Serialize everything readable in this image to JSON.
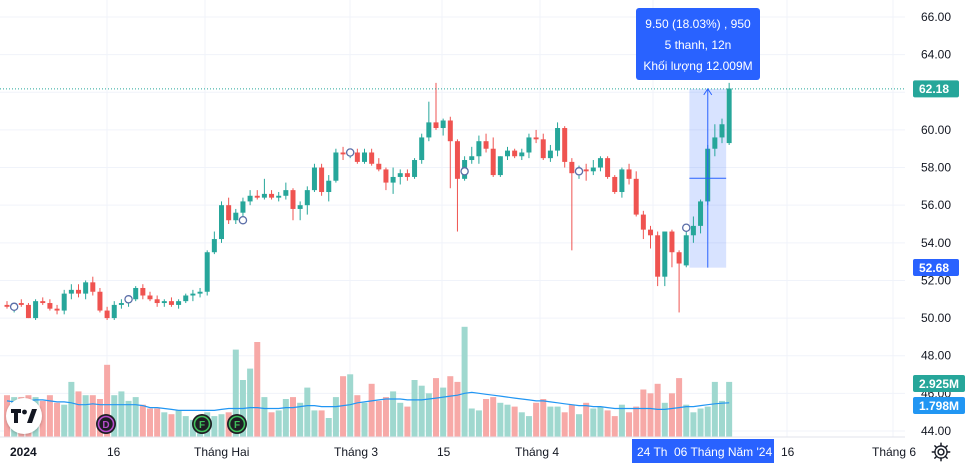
{
  "chart_data": {
    "type": "candlestick",
    "price_axis": {
      "ticks": [
        "66.00",
        "64.00",
        "62.00",
        "60.00",
        "58.00",
        "56.00",
        "54.00",
        "52.00",
        "50.00",
        "48.00",
        "46.00",
        "44.00"
      ],
      "ylim": [
        43.5,
        66.8
      ]
    },
    "time_axis": {
      "labels": [
        "2024",
        "16",
        "Tháng Hai",
        "Tháng 3",
        "15",
        "Tháng 4",
        "24 Th",
        "06 Tháng Năm '24",
        "16",
        "Tháng 6"
      ]
    },
    "last_price": "62.18",
    "range_low_label": "52.68",
    "volume_label": "2.925M",
    "volume_ma_label": "1.798M",
    "measure_tooltip": {
      "line1": "9.50 (18.03%) , 950",
      "line2": "5 thanh, 12n",
      "line3": "Khối lượng 12.009M"
    },
    "event_markers": [
      "D",
      "F",
      "F"
    ],
    "colors": {
      "up": "#26a69a",
      "down": "#ef5350",
      "up_volume": "#9fd8cf",
      "down_volume": "#f7a9a7",
      "volume_ma": "#2196f3",
      "measure": "#2962ff",
      "last_price": "#26a69a"
    },
    "candles": [
      [
        50.7,
        50.9,
        50.5,
        50.6
      ],
      [
        50.6,
        50.8,
        50.3,
        50.8
      ],
      [
        50.8,
        51.0,
        50.6,
        50.7
      ],
      [
        50.7,
        50.8,
        50.0,
        50.0
      ],
      [
        50.0,
        51.0,
        49.9,
        50.9
      ],
      [
        50.9,
        51.1,
        50.7,
        50.8
      ],
      [
        50.8,
        51.0,
        50.4,
        50.5
      ],
      [
        50.5,
        50.7,
        50.2,
        50.4
      ],
      [
        50.4,
        51.5,
        50.2,
        51.3
      ],
      [
        51.3,
        51.8,
        51.0,
        51.5
      ],
      [
        51.5,
        51.8,
        51.1,
        51.3
      ],
      [
        51.3,
        52.0,
        51.0,
        51.9
      ],
      [
        51.9,
        52.2,
        51.2,
        51.4
      ],
      [
        51.4,
        51.6,
        50.3,
        50.4
      ],
      [
        50.4,
        50.6,
        49.9,
        50.0
      ],
      [
        50.0,
        50.9,
        49.9,
        50.7
      ],
      [
        50.7,
        51.0,
        50.5,
        50.8
      ],
      [
        50.8,
        51.2,
        50.6,
        51.0
      ],
      [
        51.0,
        51.7,
        50.9,
        51.6
      ],
      [
        51.6,
        51.8,
        51.0,
        51.2
      ],
      [
        51.2,
        51.4,
        50.9,
        51.0
      ],
      [
        51.0,
        51.2,
        50.6,
        50.8
      ],
      [
        50.8,
        51.0,
        50.6,
        50.9
      ],
      [
        50.9,
        51.1,
        50.6,
        50.7
      ],
      [
        50.7,
        51.0,
        50.5,
        50.9
      ],
      [
        50.9,
        51.3,
        50.8,
        51.2
      ],
      [
        51.2,
        51.5,
        50.9,
        51.3
      ],
      [
        51.3,
        51.6,
        51.1,
        51.4
      ],
      [
        51.4,
        53.6,
        51.2,
        53.5
      ],
      [
        53.5,
        54.6,
        53.4,
        54.2
      ],
      [
        54.2,
        56.2,
        54.0,
        56.0
      ],
      [
        56.0,
        56.4,
        55.0,
        55.2
      ],
      [
        55.2,
        55.8,
        55.0,
        55.6
      ],
      [
        55.6,
        56.4,
        55.4,
        56.2
      ],
      [
        56.2,
        56.8,
        56.0,
        56.5
      ],
      [
        56.5,
        56.8,
        56.3,
        56.4
      ],
      [
        56.4,
        57.4,
        56.3,
        56.6
      ],
      [
        56.6,
        56.8,
        56.3,
        56.4
      ],
      [
        56.4,
        56.7,
        56.2,
        56.5
      ],
      [
        56.5,
        57.2,
        56.3,
        56.8
      ],
      [
        56.8,
        56.9,
        55.2,
        55.8
      ],
      [
        55.8,
        56.2,
        55.2,
        56.0
      ],
      [
        56.0,
        57.0,
        55.5,
        56.8
      ],
      [
        56.8,
        58.2,
        56.7,
        58.0
      ],
      [
        58.0,
        58.2,
        56.5,
        56.7
      ],
      [
        56.7,
        57.6,
        56.2,
        57.3
      ],
      [
        57.3,
        59.0,
        57.2,
        58.8
      ],
      [
        58.8,
        59.1,
        58.4,
        58.7
      ],
      [
        58.7,
        58.9,
        58.5,
        58.8
      ],
      [
        58.8,
        59.0,
        58.2,
        58.3
      ],
      [
        58.3,
        59.0,
        58.2,
        58.8
      ],
      [
        58.8,
        59.0,
        58.1,
        58.2
      ],
      [
        58.2,
        58.5,
        57.8,
        57.9
      ],
      [
        57.9,
        58.0,
        56.8,
        57.2
      ],
      [
        57.2,
        58.0,
        56.6,
        57.5
      ],
      [
        57.5,
        57.9,
        57.1,
        57.7
      ],
      [
        57.7,
        57.9,
        57.3,
        57.5
      ],
      [
        57.5,
        58.5,
        57.4,
        58.4
      ],
      [
        58.4,
        59.8,
        58.2,
        59.6
      ],
      [
        59.6,
        61.5,
        59.4,
        60.4
      ],
      [
        60.4,
        62.5,
        60.0,
        60.1
      ],
      [
        60.1,
        60.6,
        59.7,
        60.5
      ],
      [
        60.5,
        60.7,
        56.9,
        59.4
      ],
      [
        59.4,
        59.5,
        54.6,
        57.4
      ],
      [
        57.4,
        58.6,
        57.3,
        58.4
      ],
      [
        58.4,
        59.1,
        58.2,
        58.6
      ],
      [
        58.6,
        59.7,
        58.2,
        59.4
      ],
      [
        59.4,
        59.8,
        58.8,
        59.0
      ],
      [
        59.0,
        59.6,
        57.5,
        57.6
      ],
      [
        57.6,
        58.6,
        57.5,
        58.6
      ],
      [
        58.6,
        59.1,
        58.4,
        58.9
      ],
      [
        58.9,
        59.0,
        58.5,
        58.6
      ],
      [
        58.6,
        59.0,
        58.4,
        58.8
      ],
      [
        58.8,
        59.8,
        58.5,
        59.6
      ],
      [
        59.6,
        60.0,
        59.3,
        59.5
      ],
      [
        59.5,
        59.8,
        58.4,
        58.5
      ],
      [
        58.5,
        59.2,
        58.3,
        58.9
      ],
      [
        58.9,
        60.4,
        58.6,
        60.1
      ],
      [
        60.1,
        60.2,
        58.0,
        58.3
      ],
      [
        58.3,
        58.5,
        53.6,
        57.7
      ],
      [
        57.7,
        58.1,
        57.4,
        57.9
      ],
      [
        57.9,
        58.2,
        57.3,
        57.8
      ],
      [
        57.8,
        58.4,
        57.6,
        58.0
      ],
      [
        58.0,
        58.6,
        57.8,
        58.5
      ],
      [
        58.5,
        58.6,
        57.4,
        57.5
      ],
      [
        57.5,
        57.6,
        56.6,
        56.7
      ],
      [
        56.7,
        58.0,
        56.4,
        57.9
      ],
      [
        57.9,
        58.2,
        57.1,
        57.4
      ],
      [
        57.4,
        57.8,
        55.4,
        55.5
      ],
      [
        55.5,
        55.7,
        54.2,
        54.7
      ],
      [
        54.7,
        54.9,
        53.7,
        54.4
      ],
      [
        54.4,
        54.6,
        51.7,
        52.2
      ],
      [
        52.2,
        54.6,
        51.7,
        54.6
      ],
      [
        54.6,
        54.7,
        52.7,
        53.5
      ],
      [
        53.5,
        53.6,
        50.3,
        52.9
      ],
      [
        52.8,
        54.6,
        52.7,
        54.4
      ],
      [
        54.4,
        55.4,
        54.0,
        54.9
      ],
      [
        54.9,
        56.3,
        54.5,
        56.2
      ],
      [
        56.2,
        59.2,
        56.0,
        59.0
      ],
      [
        59.0,
        60.3,
        58.6,
        59.6
      ],
      [
        59.6,
        60.6,
        59.3,
        60.3
      ],
      [
        59.3,
        62.5,
        59.2,
        62.2
      ]
    ],
    "volumes": [
      2.2,
      2.1,
      2.1,
      2.2,
      2.1,
      1.9,
      2.2,
      1.8,
      1.7,
      2.9,
      2.4,
      2.2,
      2.2,
      2.0,
      3.8,
      2.2,
      2.4,
      1.9,
      2.1,
      1.7,
      1.5,
      1.5,
      1.3,
      1.2,
      1.4,
      1.1,
      0.9,
      0.9,
      1.3,
      1.1,
      1.2,
      1.3,
      4.6,
      3.0,
      3.6,
      5.0,
      2.1,
      1.3,
      1.4,
      2.0,
      2.1,
      1.8,
      2.6,
      1.4,
      1.4,
      1.0,
      2.1,
      3.2,
      3.3,
      2.2,
      1.8,
      2.8,
      1.9,
      2.1,
      2.4,
      1.8,
      1.6,
      3.0,
      2.7,
      2.3,
      3.1,
      2.6,
      3.2,
      2.9,
      5.8,
      1.5,
      1.4,
      2.0,
      2.1,
      1.8,
      1.7,
      1.6,
      1.3,
      1.1,
      1.8,
      2.0,
      1.6,
      1.6,
      1.3,
      1.7,
      1.2,
      1.8,
      1.5,
      1.6,
      1.4,
      1.1,
      1.7,
      1.3,
      1.6,
      2.5,
      2.3,
      2.8,
      1.8,
      2.3,
      3.1,
      1.7,
      1.3,
      1.5,
      1.6,
      2.9,
      1.9,
      2.9
    ],
    "volume_ma": [
      1.9,
      1.85,
      1.85,
      1.9,
      1.95,
      1.95,
      1.9,
      1.85,
      1.85,
      1.8,
      1.7,
      1.7,
      1.75,
      1.7,
      1.7,
      1.7,
      1.7,
      1.7,
      1.7,
      1.65,
      1.55,
      1.55,
      1.5,
      1.45,
      1.4,
      1.4,
      1.4,
      1.4,
      1.4,
      1.4,
      1.45,
      1.5,
      1.5,
      1.5,
      1.55,
      1.55,
      1.5,
      1.5,
      1.5,
      1.55,
      1.55,
      1.6,
      1.65,
      1.65,
      1.6,
      1.6,
      1.6,
      1.65,
      1.7,
      1.8,
      1.85,
      1.9,
      1.95,
      2.0,
      2.0,
      2.0,
      1.95,
      1.95,
      1.95,
      2.0,
      2.05,
      2.1,
      2.15,
      2.2,
      2.3,
      2.35,
      2.3,
      2.25,
      2.2,
      2.15,
      2.1,
      2.05,
      2.0,
      1.95,
      1.9,
      1.9,
      1.85,
      1.8,
      1.75,
      1.7,
      1.65,
      1.65,
      1.6,
      1.6,
      1.55,
      1.5,
      1.5,
      1.5,
      1.5,
      1.5,
      1.5,
      1.45,
      1.45,
      1.5,
      1.55,
      1.6,
      1.6,
      1.65,
      1.7,
      1.75,
      1.78,
      1.8
    ],
    "event_indices": [
      26,
      52,
      61
    ]
  }
}
